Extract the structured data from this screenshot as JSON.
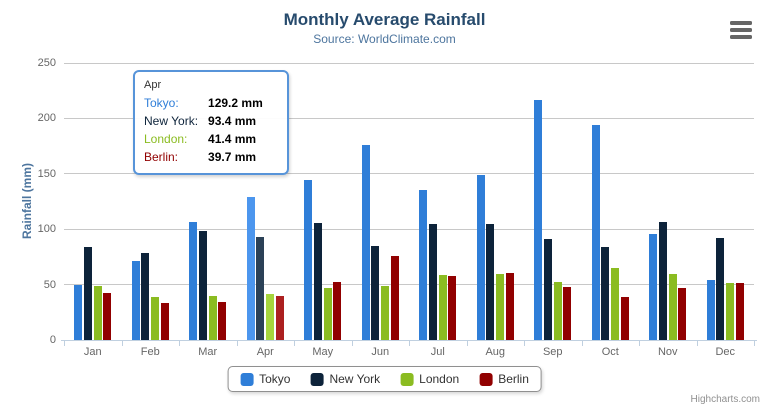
{
  "chart_data": {
    "type": "bar",
    "title": "Monthly Average Rainfall",
    "subtitle": "Source: WorldClimate.com",
    "xlabel": "",
    "ylabel": "Rainfall (mm)",
    "ylim": [
      0,
      250
    ],
    "yticks": [
      0,
      50,
      100,
      150,
      200,
      250
    ],
    "grid": true,
    "legend_position": "bottom",
    "categories": [
      "Jan",
      "Feb",
      "Mar",
      "Apr",
      "May",
      "Jun",
      "Jul",
      "Aug",
      "Sep",
      "Oct",
      "Nov",
      "Dec"
    ],
    "series": [
      {
        "name": "Tokyo",
        "color": "#2f7ed8",
        "hover_color": "#4c96ee",
        "values": [
          49.9,
          71.5,
          106.4,
          129.2,
          144.0,
          176.0,
          135.6,
          148.5,
          216.4,
          194.1,
          95.6,
          54.4
        ]
      },
      {
        "name": "New York",
        "color": "#0d233a",
        "hover_color": "#2b4157",
        "values": [
          83.6,
          78.8,
          98.5,
          93.4,
          106.0,
          84.5,
          105.0,
          104.3,
          91.2,
          83.5,
          106.6,
          92.3
        ]
      },
      {
        "name": "London",
        "color": "#8bbc21",
        "hover_color": "#a6d53c",
        "values": [
          48.9,
          38.8,
          39.3,
          41.4,
          47.0,
          48.3,
          59.0,
          59.6,
          52.4,
          65.2,
          59.3,
          51.2
        ]
      },
      {
        "name": "Berlin",
        "color": "#910000",
        "hover_color": "#ac2020",
        "values": [
          42.4,
          33.2,
          34.5,
          39.7,
          52.6,
          75.5,
          57.4,
          60.4,
          47.6,
          39.1,
          46.8,
          51.1
        ]
      }
    ],
    "hovered_category": "Apr"
  },
  "tooltip": {
    "header": "Apr",
    "rows": [
      {
        "label": "Tokyo:",
        "value": "129.2 mm",
        "color": "#2f7ed8"
      },
      {
        "label": "New York:",
        "value": "93.4 mm",
        "color": "#0d233a"
      },
      {
        "label": "London:",
        "value": "41.4 mm",
        "color": "#8bbc21"
      },
      {
        "label": "Berlin:",
        "value": "39.7 mm",
        "color": "#910000"
      }
    ]
  },
  "icons": {
    "context_menu": "hamburger-menu-icon"
  },
  "credit": "Highcharts.com"
}
